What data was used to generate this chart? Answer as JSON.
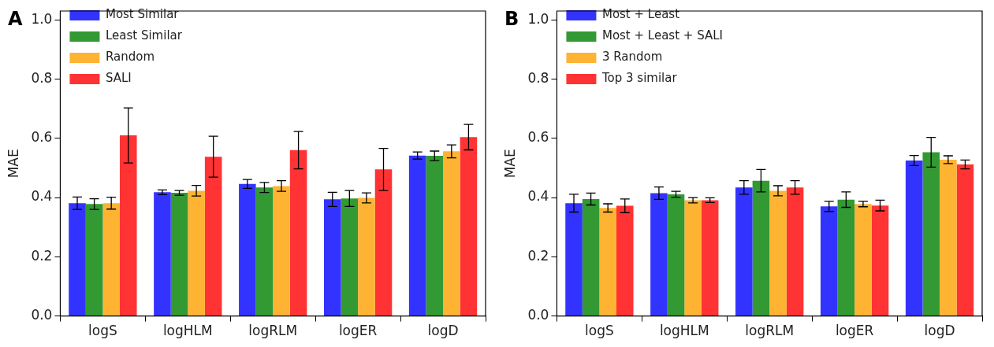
{
  "chart_data": [
    {
      "type": "bar",
      "title": "A",
      "ylabel": "MAE",
      "categories": [
        "logS",
        "logHLM",
        "logRLM",
        "logER",
        "logD"
      ],
      "ylim": [
        0,
        1.03
      ],
      "yticks": [
        {
          "value": 0,
          "label": "0.0"
        },
        {
          "value": 0.2,
          "label": "0.2"
        },
        {
          "value": 0.4,
          "label": "0.4"
        },
        {
          "value": 0.6,
          "label": "0.6"
        },
        {
          "value": 0.8,
          "label": "0.8"
        },
        {
          "value": 1,
          "label": "1.0"
        }
      ],
      "legend": "top left",
      "series": [
        {
          "name": "Most Similar",
          "color": "#3333ff",
          "values": [
            0.381,
            0.418,
            0.446,
            0.394,
            0.542
          ],
          "errors": [
            0.021,
            0.008,
            0.015,
            0.024,
            0.012
          ]
        },
        {
          "name": "Least Similar",
          "color": "#339933",
          "values": [
            0.378,
            0.416,
            0.434,
            0.397,
            0.541
          ],
          "errors": [
            0.018,
            0.008,
            0.017,
            0.027,
            0.016
          ]
        },
        {
          "name": "Random",
          "color": "#ffb333",
          "values": [
            0.381,
            0.423,
            0.439,
            0.399,
            0.556
          ],
          "errors": [
            0.02,
            0.018,
            0.018,
            0.017,
            0.022
          ]
        },
        {
          "name": "SALI",
          "color": "#ff3333",
          "values": [
            0.61,
            0.538,
            0.56,
            0.495,
            0.604
          ],
          "errors": [
            0.093,
            0.069,
            0.063,
            0.071,
            0.043
          ]
        }
      ]
    },
    {
      "type": "bar",
      "title": "B",
      "ylabel": "MAE",
      "categories": [
        "logS",
        "logHLM",
        "logRLM",
        "logER",
        "logD"
      ],
      "ylim": [
        0,
        1.03
      ],
      "yticks": [
        {
          "value": 0,
          "label": "0.0"
        },
        {
          "value": 0.2,
          "label": "0.2"
        },
        {
          "value": 0.4,
          "label": "0.4"
        },
        {
          "value": 0.6,
          "label": "0.6"
        },
        {
          "value": 0.8,
          "label": "0.8"
        },
        {
          "value": 1,
          "label": "1.0"
        }
      ],
      "legend": "top left",
      "series": [
        {
          "name": "Most + Least",
          "color": "#3333ff",
          "values": [
            0.381,
            0.415,
            0.434,
            0.37,
            0.525
          ],
          "errors": [
            0.03,
            0.021,
            0.023,
            0.017,
            0.017
          ]
        },
        {
          "name": "Most + Least + SALI",
          "color": "#339933",
          "values": [
            0.395,
            0.411,
            0.457,
            0.393,
            0.553
          ],
          "errors": [
            0.02,
            0.01,
            0.038,
            0.026,
            0.05
          ]
        },
        {
          "name": "3 Random",
          "color": "#ffb333",
          "values": [
            0.365,
            0.391,
            0.423,
            0.378,
            0.528
          ],
          "errors": [
            0.014,
            0.009,
            0.017,
            0.009,
            0.013
          ]
        },
        {
          "name": "Top 3 similar",
          "color": "#ff3333",
          "values": [
            0.372,
            0.391,
            0.434,
            0.373,
            0.512
          ],
          "errors": [
            0.023,
            0.008,
            0.023,
            0.018,
            0.015
          ]
        }
      ]
    }
  ]
}
